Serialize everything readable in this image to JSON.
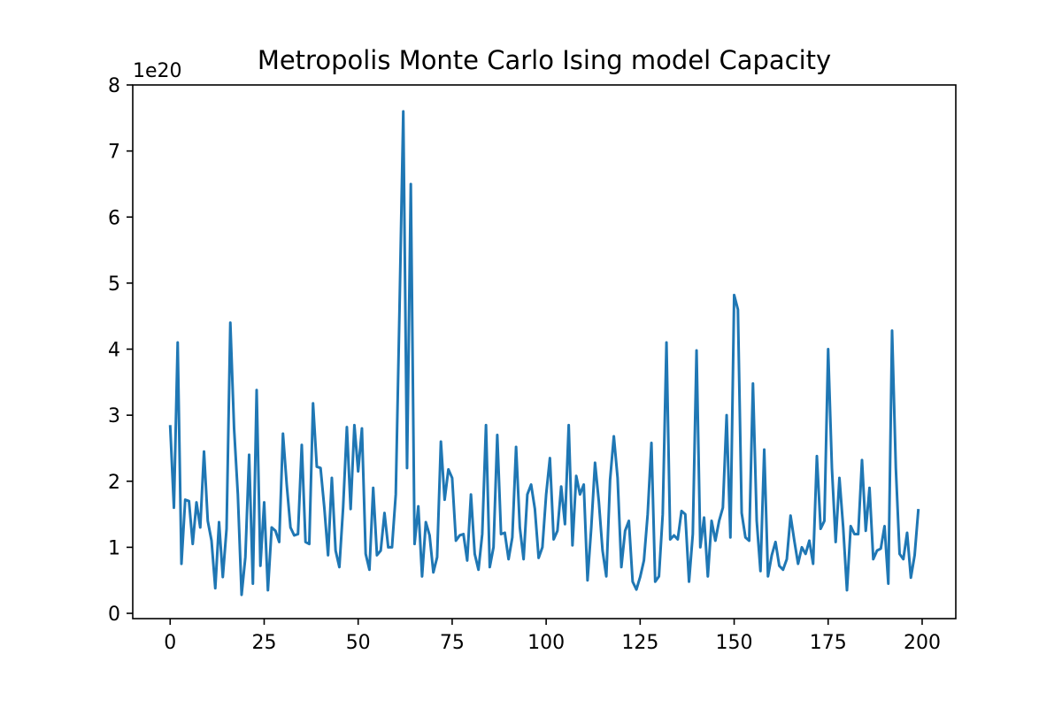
{
  "chart_data": {
    "type": "line",
    "title": "Metropolis Monte Carlo Ising model Capacity",
    "xlabel": "",
    "ylabel": "",
    "y_offset_label": "1e20",
    "xlim": [
      -9.95,
      208.95
    ],
    "ylim": [
      -0.08,
      8.0
    ],
    "x_ticks": [
      0,
      25,
      50,
      75,
      100,
      125,
      150,
      175,
      200
    ],
    "y_ticks": [
      0,
      1,
      2,
      3,
      4,
      5,
      6,
      7,
      8
    ],
    "grid": false,
    "line_color": "#1f77b4",
    "series": [
      {
        "x_start": 0,
        "x_step": 1,
        "values": [
          2.85,
          1.6,
          4.1,
          0.75,
          1.72,
          1.7,
          1.05,
          1.68,
          1.3,
          2.45,
          1.4,
          1.1,
          0.38,
          1.38,
          0.55,
          1.28,
          4.4,
          2.8,
          1.8,
          0.28,
          0.85,
          2.4,
          0.45,
          3.38,
          0.72,
          1.68,
          0.35,
          1.3,
          1.25,
          1.08,
          2.72,
          1.95,
          1.3,
          1.18,
          1.2,
          2.55,
          1.08,
          1.05,
          3.18,
          2.22,
          2.2,
          1.6,
          0.88,
          2.05,
          0.95,
          0.7,
          1.6,
          2.82,
          1.58,
          2.85,
          2.15,
          2.8,
          0.9,
          0.66,
          1.9,
          0.88,
          0.95,
          1.52,
          1.0,
          1.0,
          1.8,
          4.6,
          7.6,
          2.2,
          6.5,
          1.05,
          1.62,
          0.56,
          1.38,
          1.18,
          0.62,
          0.85,
          2.6,
          1.72,
          2.18,
          2.05,
          1.1,
          1.18,
          1.2,
          0.8,
          1.8,
          0.9,
          0.66,
          1.2,
          2.85,
          0.7,
          1.0,
          2.7,
          1.2,
          1.22,
          0.82,
          1.15,
          2.52,
          1.3,
          0.82,
          1.8,
          1.95,
          1.58,
          0.84,
          1.0,
          1.8,
          2.35,
          1.12,
          1.25,
          1.92,
          1.35,
          2.85,
          1.03,
          2.08,
          1.8,
          1.95,
          0.5,
          1.3,
          2.28,
          1.7,
          0.95,
          0.56,
          2.02,
          2.68,
          2.05,
          0.7,
          1.25,
          1.4,
          0.48,
          0.36,
          0.55,
          0.8,
          1.5,
          2.58,
          0.48,
          0.56,
          1.5,
          4.1,
          1.12,
          1.18,
          1.12,
          1.55,
          1.5,
          0.48,
          1.2,
          3.98,
          1.0,
          1.45,
          0.56,
          1.4,
          1.1,
          1.4,
          1.6,
          3.0,
          1.15,
          4.82,
          4.6,
          1.52,
          1.15,
          1.1,
          3.48,
          1.4,
          0.64,
          2.48,
          0.56,
          0.88,
          1.08,
          0.72,
          0.66,
          0.82,
          1.48,
          1.1,
          0.75,
          1.0,
          0.9,
          1.1,
          0.75,
          2.38,
          1.28,
          1.4,
          4.0,
          2.2,
          1.08,
          2.05,
          1.3,
          0.35,
          1.32,
          1.2,
          1.2,
          2.32,
          1.25,
          1.9,
          0.82,
          0.95,
          0.98,
          1.32,
          0.45,
          4.28,
          2.2,
          0.9,
          0.82,
          1.22,
          0.54,
          0.88,
          1.58
        ]
      }
    ]
  }
}
